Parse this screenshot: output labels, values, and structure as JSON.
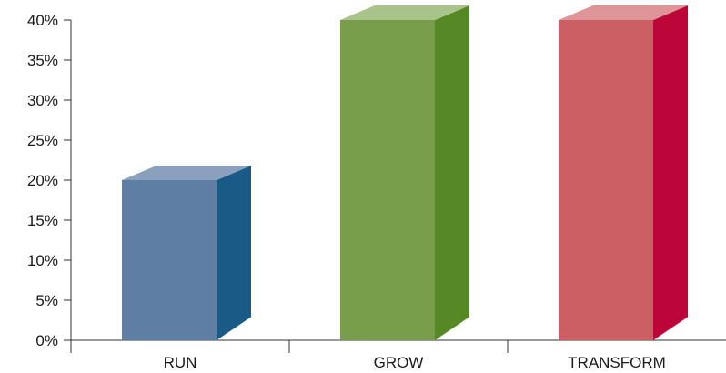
{
  "chart_data": {
    "type": "bar",
    "style": "3d-column",
    "categories": [
      "RUN",
      "GROW",
      "TRANSFORM"
    ],
    "values": [
      20,
      40,
      40
    ],
    "ylim": [
      0,
      40
    ],
    "yticks": [
      "0%",
      "5%",
      "10%",
      "15%",
      "20%",
      "25%",
      "30%",
      "35%",
      "40%"
    ],
    "ytick_values": [
      0,
      5,
      10,
      15,
      20,
      25,
      30,
      35,
      40
    ],
    "grid": false,
    "legend": "none",
    "colors": [
      {
        "front": "#5f7ea3",
        "side": "#1a5a86",
        "top": "#8aa0bd"
      },
      {
        "front": "#789d4b",
        "side": "#578826",
        "top": "#a8c48a"
      },
      {
        "front": "#cc5f63",
        "side": "#bc063a",
        "top": "#df9497"
      }
    ]
  }
}
